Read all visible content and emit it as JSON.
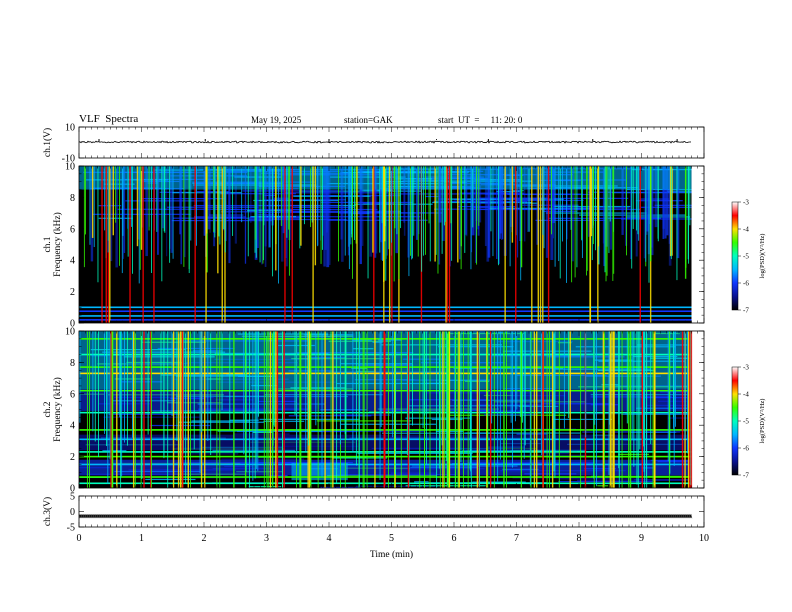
{
  "header": {
    "title": "VLF  Spectra",
    "date": "May 19, 2025",
    "station": "station=GAK",
    "start": "start  UT  =     11: 20: 0"
  },
  "colors": {
    "colormap": [
      "#000000",
      "#0a1290",
      "#0f35ff",
      "#00b7ff",
      "#00ffbf",
      "#34ff00",
      "#ffe000",
      "#ff0000",
      "#ffffff"
    ]
  },
  "chart_data": [
    {
      "type": "line",
      "panel": "ch1_waveform",
      "ylabel": "ch.1(V)",
      "ylim": [
        -10,
        10
      ],
      "yticks": [
        10,
        -10
      ],
      "x_range_min": [
        0,
        10
      ],
      "baseline_v": 0.3,
      "x": [
        0,
        0.32,
        2.02,
        4.0,
        5.72,
        6.55,
        8.22,
        9.57
      ],
      "y": [
        0,
        -3,
        -3,
        -2,
        -4,
        -3,
        -3,
        -3
      ]
    },
    {
      "type": "heatmap",
      "panel": "ch1_spectrogram",
      "ylabel": "ch.1\nFrequency  (kHz)",
      "ylim": [
        0,
        10
      ],
      "yticks": [
        0,
        2,
        4,
        6,
        8,
        10
      ],
      "xlim": [
        0,
        10
      ],
      "data_end_min": 9.8,
      "colorbar": {
        "label": "log(PSD)(V²/Hz)",
        "range": [
          -7,
          -3
        ],
        "ticks": [
          -3,
          -4,
          -5,
          -6,
          -7
        ]
      },
      "bands_khz": [
        0.2,
        0.45,
        0.75,
        1.0
      ],
      "noise_floor_khz": 6.5
    },
    {
      "type": "heatmap",
      "panel": "ch2_spectrogram",
      "ylabel": "ch.2\nFrequency  (kHz)",
      "ylim": [
        0,
        10
      ],
      "yticks": [
        0,
        2,
        4,
        6,
        8,
        10
      ],
      "xlim": [
        0,
        10
      ],
      "data_end_min": 9.8,
      "colorbar": {
        "label": "log(PSD)(V²/Hz)",
        "range": [
          -7,
          -3
        ],
        "ticks": [
          -3,
          -4,
          -5,
          -6,
          -7
        ]
      },
      "bands_khz": [
        0.3,
        0.7,
        1.5,
        2.0,
        2.3,
        3.1,
        3.7,
        4.8,
        6.2,
        7.3,
        7.7,
        8.5,
        9.5
      ]
    },
    {
      "type": "line",
      "panel": "ch3_waveform",
      "ylabel": "ch.3(V)",
      "ylim": [
        -5,
        5
      ],
      "yticks": [
        5,
        0,
        -5
      ],
      "baseline_v": -1.5,
      "x_range_min": [
        0,
        9.8
      ]
    },
    {
      "type": "axis",
      "xlabel": "Time  (min)",
      "xticks": [
        0,
        1,
        2,
        3,
        4,
        5,
        6,
        7,
        8,
        9,
        10
      ]
    }
  ]
}
